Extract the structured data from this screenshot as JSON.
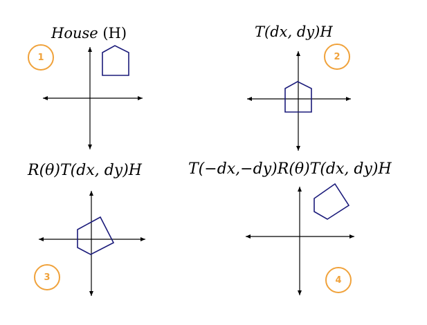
{
  "colors": {
    "axis": "#000000",
    "house": "#1a1a7a",
    "badge": "#f0a23b"
  },
  "panels": [
    {
      "number": "1",
      "label": {
        "italic": "House",
        "upright": " (H)"
      }
    },
    {
      "number": "2",
      "label": {
        "italic": "T(dx, dy)H",
        "upright": ""
      }
    },
    {
      "number": "3",
      "label": {
        "italic": "R(θ)T(dx, dy)H",
        "upright": ""
      }
    },
    {
      "number": "4",
      "label": {
        "italic": "T(−dx,−dy)R(θ)T(dx, dy)H",
        "upright": ""
      }
    }
  ]
}
